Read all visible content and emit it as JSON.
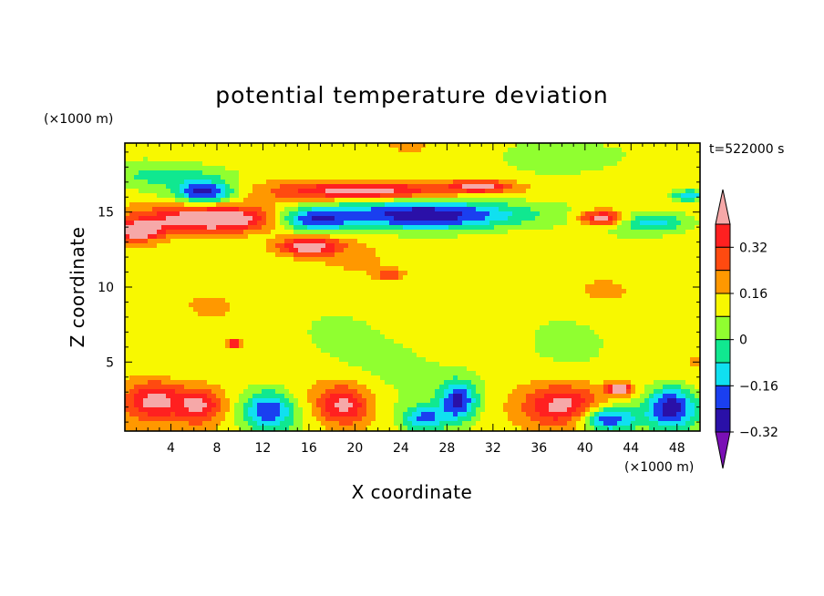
{
  "chart_data": {
    "type": "heatmap",
    "title": "potential temperature deviation",
    "xlabel": "X coordinate",
    "ylabel": "Z coordinate",
    "x_unit": "(×1000 m)",
    "y_unit": "(×1000 m)",
    "time_label": "t=522000 s",
    "xlim": [
      0,
      50
    ],
    "ylim": [
      0.4,
      19.6
    ],
    "x_ticks": [
      4,
      8,
      12,
      16,
      20,
      24,
      28,
      32,
      36,
      40,
      44,
      48
    ],
    "y_ticks": [
      5,
      10,
      15
    ],
    "colorbar": {
      "levels": [
        -0.4,
        -0.32,
        -0.24,
        -0.16,
        -0.08,
        0,
        0.08,
        0.16,
        0.24,
        0.32,
        0.4
      ],
      "colors": [
        "#7a0fb5",
        "#2a10a8",
        "#1a3ff0",
        "#10e0f0",
        "#10e890",
        "#90ff30",
        "#f8f800",
        "#ff9800",
        "#ff4a10",
        "#ff2020",
        "#f6a8a8"
      ],
      "tick_labels": [
        "0.32",
        "0.16",
        "0",
        "−0.16",
        "−0.32"
      ],
      "tick_values": [
        0.32,
        0.16,
        0,
        -0.16,
        -0.32
      ],
      "extend": "both"
    },
    "field_features": [
      {
        "x": 7,
        "z": 16.3,
        "rx": 2.6,
        "rz": 0.7,
        "v": -0.4
      },
      {
        "x": 8,
        "z": 14.5,
        "rx": 6.5,
        "rz": 0.9,
        "v": 0.42
      },
      {
        "x": 1,
        "z": 13.7,
        "rx": 2.0,
        "rz": 0.6,
        "v": 0.34
      },
      {
        "x": 16,
        "z": 14.5,
        "rx": 3.5,
        "rz": 0.8,
        "v": -0.36
      },
      {
        "x": 21,
        "z": 16.4,
        "rx": 7.0,
        "rz": 0.6,
        "v": 0.38
      },
      {
        "x": 27,
        "z": 14.8,
        "rx": 9.0,
        "rz": 1.0,
        "v": -0.42
      },
      {
        "x": 31,
        "z": 16.7,
        "rx": 3.0,
        "rz": 0.4,
        "v": 0.28
      },
      {
        "x": 16,
        "z": 12.7,
        "rx": 2.8,
        "rz": 0.6,
        "v": 0.36
      },
      {
        "x": 41.5,
        "z": 14.6,
        "rx": 2.0,
        "rz": 0.5,
        "v": 0.38
      },
      {
        "x": 46,
        "z": 14.3,
        "rx": 3.0,
        "rz": 0.6,
        "v": -0.22
      },
      {
        "x": 49,
        "z": 16.1,
        "rx": 1.5,
        "rz": 0.4,
        "v": -0.28
      },
      {
        "x": 5,
        "z": 17.4,
        "rx": 6.0,
        "rz": 0.8,
        "v": -0.14
      },
      {
        "x": 2.5,
        "z": 2.5,
        "rx": 2.5,
        "rz": 1.3,
        "v": 0.3
      },
      {
        "x": 6.5,
        "z": 2.2,
        "rx": 2.0,
        "rz": 1.2,
        "v": 0.28
      },
      {
        "x": 12.5,
        "z": 1.8,
        "rx": 2.2,
        "rz": 1.3,
        "v": -0.36
      },
      {
        "x": 19,
        "z": 2.1,
        "rx": 2.2,
        "rz": 1.3,
        "v": 0.3
      },
      {
        "x": 26,
        "z": 1.2,
        "rx": 2.0,
        "rz": 0.9,
        "v": -0.3
      },
      {
        "x": 29,
        "z": 2.4,
        "rx": 1.6,
        "rz": 1.3,
        "v": -0.36
      },
      {
        "x": 38,
        "z": 2.1,
        "rx": 3.2,
        "rz": 1.3,
        "v": 0.28
      },
      {
        "x": 42,
        "z": 1.2,
        "rx": 2.4,
        "rz": 0.8,
        "v": -0.38
      },
      {
        "x": 47.5,
        "z": 2.0,
        "rx": 2.2,
        "rz": 1.4,
        "v": -0.4
      },
      {
        "x": 43,
        "z": 3.2,
        "rx": 1.2,
        "rz": 0.4,
        "v": 0.36
      },
      {
        "x": 9.5,
        "z": 6.2,
        "rx": 0.6,
        "rz": 0.3,
        "v": 0.34
      },
      {
        "x": 23,
        "z": 10.8,
        "rx": 1.0,
        "rz": 0.3,
        "v": 0.22
      },
      {
        "x": 38,
        "z": 6.8,
        "rx": 3.0,
        "rz": 1.5,
        "v": -0.06
      },
      {
        "x": 22,
        "z": 5.2,
        "rx": 8.0,
        "rz": 2.0,
        "v": -0.07
      },
      {
        "x": 41,
        "z": 18.6,
        "rx": 6.0,
        "rz": 1.2,
        "v": -0.08
      }
    ]
  }
}
